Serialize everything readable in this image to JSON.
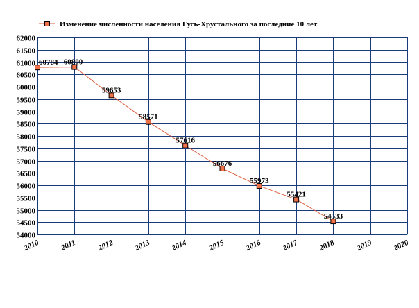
{
  "chart_data": {
    "type": "line",
    "title": "",
    "xlabel": "",
    "ylabel": "",
    "series": [
      {
        "name": "Изменение численности населения Гусь-Хрустального за последние 10 лет",
        "color": "#e06040",
        "marker_color": "#f07048",
        "points": [
          {
            "x": 2010,
            "y": 60784,
            "label": "60784"
          },
          {
            "x": 2011,
            "y": 60800,
            "label": "60800"
          },
          {
            "x": 2012,
            "y": 59653,
            "label": "59653"
          },
          {
            "x": 2013,
            "y": 58571,
            "label": "58571"
          },
          {
            "x": 2014,
            "y": 57616,
            "label": "57616"
          },
          {
            "x": 2015,
            "y": 56676,
            "label": "56676"
          },
          {
            "x": 2016,
            "y": 55973,
            "label": "55973"
          },
          {
            "x": 2017,
            "y": 55421,
            "label": "55421"
          },
          {
            "x": 2018,
            "y": 54533,
            "label": "54533"
          }
        ]
      }
    ],
    "x_ticks": [
      "2010",
      "2011",
      "2012",
      "2013",
      "2014",
      "2015",
      "2016",
      "2017",
      "2018",
      "2019",
      "2020"
    ],
    "y_ticks": [
      "54000",
      "54500",
      "55000",
      "55500",
      "56000",
      "56500",
      "57000",
      "57500",
      "58000",
      "58500",
      "59000",
      "59500",
      "60000",
      "60500",
      "61000",
      "61500",
      "62000"
    ],
    "xlim": [
      2010,
      2020
    ],
    "ylim": [
      54000,
      62000
    ],
    "grid": true,
    "grid_color": "#1a3a7a",
    "legend_position": "top"
  }
}
